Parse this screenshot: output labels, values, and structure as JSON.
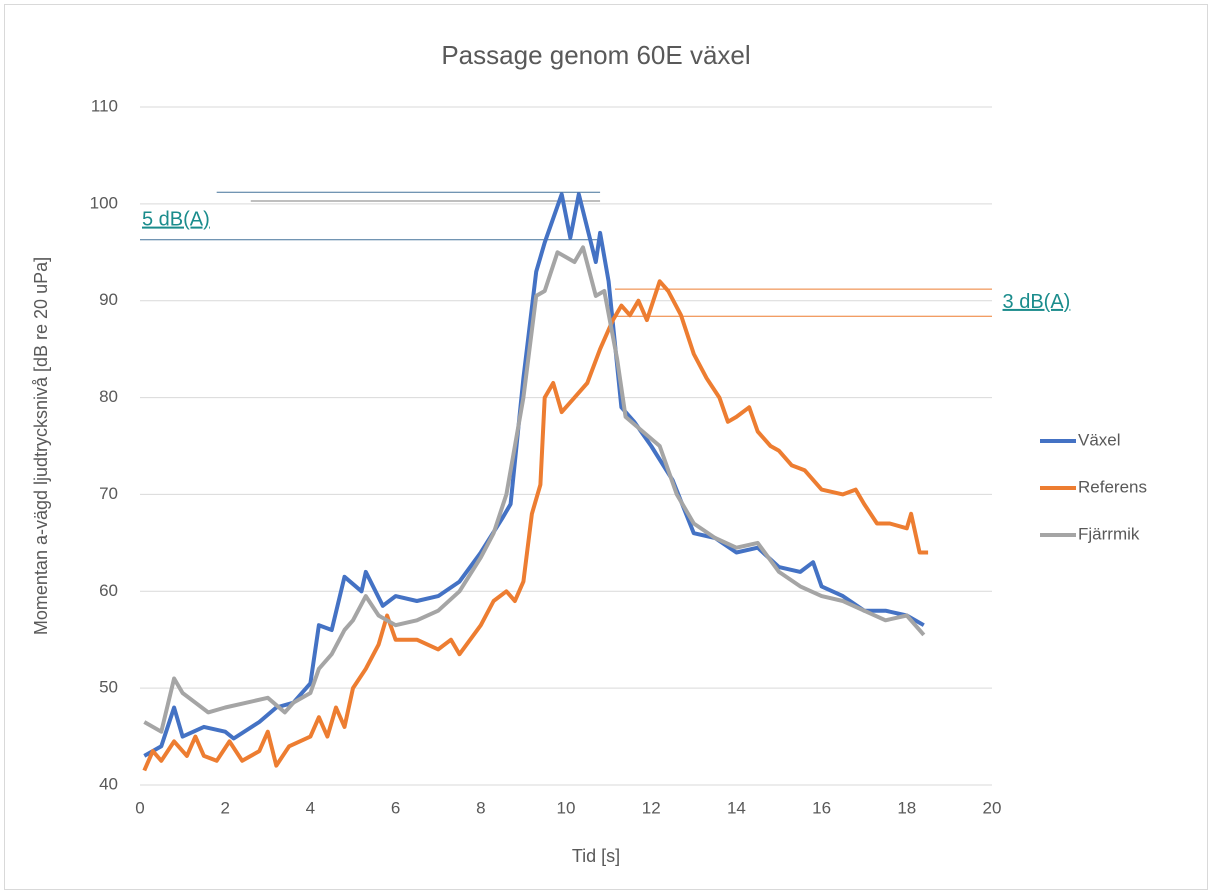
{
  "chart_data": {
    "type": "line",
    "title": "Passage genom 60E växel",
    "xlabel": "Tid [s]",
    "ylabel": "Momentan a-vägd ljudtrycksnivå [dB re 20 uPa]",
    "xlim": [
      0,
      20
    ],
    "xticks": [
      0,
      2,
      4,
      6,
      8,
      10,
      12,
      14,
      16,
      18,
      20
    ],
    "ylim": [
      40,
      110
    ],
    "yticks": [
      40,
      50,
      60,
      70,
      80,
      90,
      100,
      110
    ],
    "grid": true,
    "legend": "right",
    "series": [
      {
        "name": "Växel",
        "color": "#4472c4",
        "x": [
          0.1,
          0.5,
          0.8,
          1.0,
          1.5,
          2.0,
          2.2,
          2.8,
          3.2,
          3.6,
          4.0,
          4.2,
          4.5,
          4.8,
          5.2,
          5.3,
          5.7,
          6.0,
          6.5,
          7.0,
          7.5,
          8.0,
          8.5,
          8.7,
          9.0,
          9.3,
          9.5,
          9.9,
          10.1,
          10.3,
          10.7,
          10.8,
          11.0,
          11.3,
          11.6,
          12.0,
          12.5,
          13.0,
          13.5,
          14.0,
          14.5,
          15.0,
          15.5,
          15.8,
          16.0,
          16.5,
          17.0,
          17.5,
          18.0,
          18.4
        ],
        "values": [
          43,
          44,
          48,
          45,
          46,
          45.5,
          44.8,
          46.5,
          48,
          48.5,
          50.5,
          56.5,
          56,
          61.5,
          60,
          62,
          58.5,
          59.5,
          59,
          59.5,
          61,
          64,
          67.5,
          69,
          82,
          93,
          96,
          101,
          96.5,
          101,
          94,
          97,
          92,
          79,
          77.5,
          75,
          71.5,
          66,
          65.5,
          64,
          64.5,
          62.5,
          62,
          63,
          60.5,
          59.5,
          58,
          58,
          57.5,
          56.5
        ]
      },
      {
        "name": "Referens",
        "color": "#ed7d31",
        "x": [
          0.1,
          0.3,
          0.5,
          0.8,
          1.1,
          1.3,
          1.5,
          1.8,
          2.1,
          2.4,
          2.8,
          3.0,
          3.2,
          3.5,
          4.0,
          4.2,
          4.4,
          4.6,
          4.8,
          5.0,
          5.3,
          5.6,
          5.8,
          6.0,
          6.5,
          7.0,
          7.3,
          7.5,
          8.0,
          8.3,
          8.6,
          8.8,
          9.0,
          9.2,
          9.4,
          9.5,
          9.7,
          9.9,
          10.2,
          10.5,
          10.8,
          11.1,
          11.3,
          11.5,
          11.7,
          11.9,
          12.2,
          12.4,
          12.7,
          13.0,
          13.3,
          13.6,
          13.8,
          14.0,
          14.3,
          14.5,
          14.8,
          15.0,
          15.3,
          15.6,
          16.0,
          16.5,
          16.8,
          17.0,
          17.3,
          17.6,
          18.0,
          18.1,
          18.3,
          18.5
        ],
        "values": [
          41.5,
          43.5,
          42.5,
          44.5,
          43,
          45,
          43,
          42.5,
          44.5,
          42.5,
          43.5,
          45.5,
          42,
          44,
          45,
          47,
          45,
          48,
          46,
          50,
          52,
          54.5,
          57.5,
          55,
          55,
          54,
          55,
          53.5,
          56.5,
          59,
          60,
          59,
          61,
          68,
          71,
          80,
          81.5,
          78.5,
          80,
          81.5,
          85,
          88,
          89.5,
          88.5,
          90,
          88,
          92,
          91,
          88.5,
          84.5,
          82,
          80,
          77.5,
          78,
          79,
          76.5,
          75,
          74.5,
          73,
          72.5,
          70.5,
          70,
          70.5,
          69,
          67,
          67,
          66.5,
          68,
          64,
          64
        ]
      },
      {
        "name": "Fjärrmik",
        "color": "#a5a5a5",
        "x": [
          0.1,
          0.5,
          0.8,
          1.0,
          1.3,
          1.6,
          2.0,
          2.5,
          3.0,
          3.4,
          3.6,
          4.0,
          4.2,
          4.5,
          4.8,
          5.0,
          5.3,
          5.6,
          6.0,
          6.5,
          7.0,
          7.5,
          8.0,
          8.3,
          8.6,
          9.0,
          9.3,
          9.5,
          9.8,
          10.2,
          10.4,
          10.7,
          10.9,
          11.2,
          11.4,
          11.8,
          12.2,
          12.6,
          13.0,
          13.5,
          14.0,
          14.5,
          15.0,
          15.5,
          16.0,
          16.5,
          17.0,
          17.5,
          18.0,
          18.4
        ],
        "values": [
          46.5,
          45.5,
          51,
          49.5,
          48.5,
          47.5,
          48,
          48.5,
          49,
          47.5,
          48.5,
          49.5,
          52,
          53.5,
          56,
          57,
          59.5,
          57.5,
          56.5,
          57,
          58,
          60,
          63.5,
          66,
          70,
          80,
          90.5,
          91,
          95,
          94,
          95.5,
          90.5,
          91,
          84,
          78,
          76.5,
          75,
          70,
          67,
          65.5,
          64.5,
          65,
          62,
          60.5,
          59.5,
          59,
          58,
          57,
          57.5,
          55.5
        ]
      }
    ],
    "reference_lines": [
      {
        "y": 101.2,
        "x": [
          1.8,
          10.8
        ],
        "color": "#44729a"
      },
      {
        "y": 100.3,
        "x": [
          2.6,
          10.8
        ],
        "color": "#7f7f7f"
      },
      {
        "y": 96.3,
        "x": [
          0,
          10.8
        ],
        "color": "#44729a"
      },
      {
        "y": 91.2,
        "x": [
          11.15,
          20
        ],
        "color": "#ed7d31"
      },
      {
        "y": 88.4,
        "x": [
          11.15,
          20
        ],
        "color": "#ed7d31"
      }
    ],
    "annotations": [
      {
        "text": "5 dB(A)",
        "x": 0,
        "y": 98.3
      },
      {
        "text": "3 dB(A)",
        "x": 20.2,
        "y": 89.8
      }
    ]
  }
}
